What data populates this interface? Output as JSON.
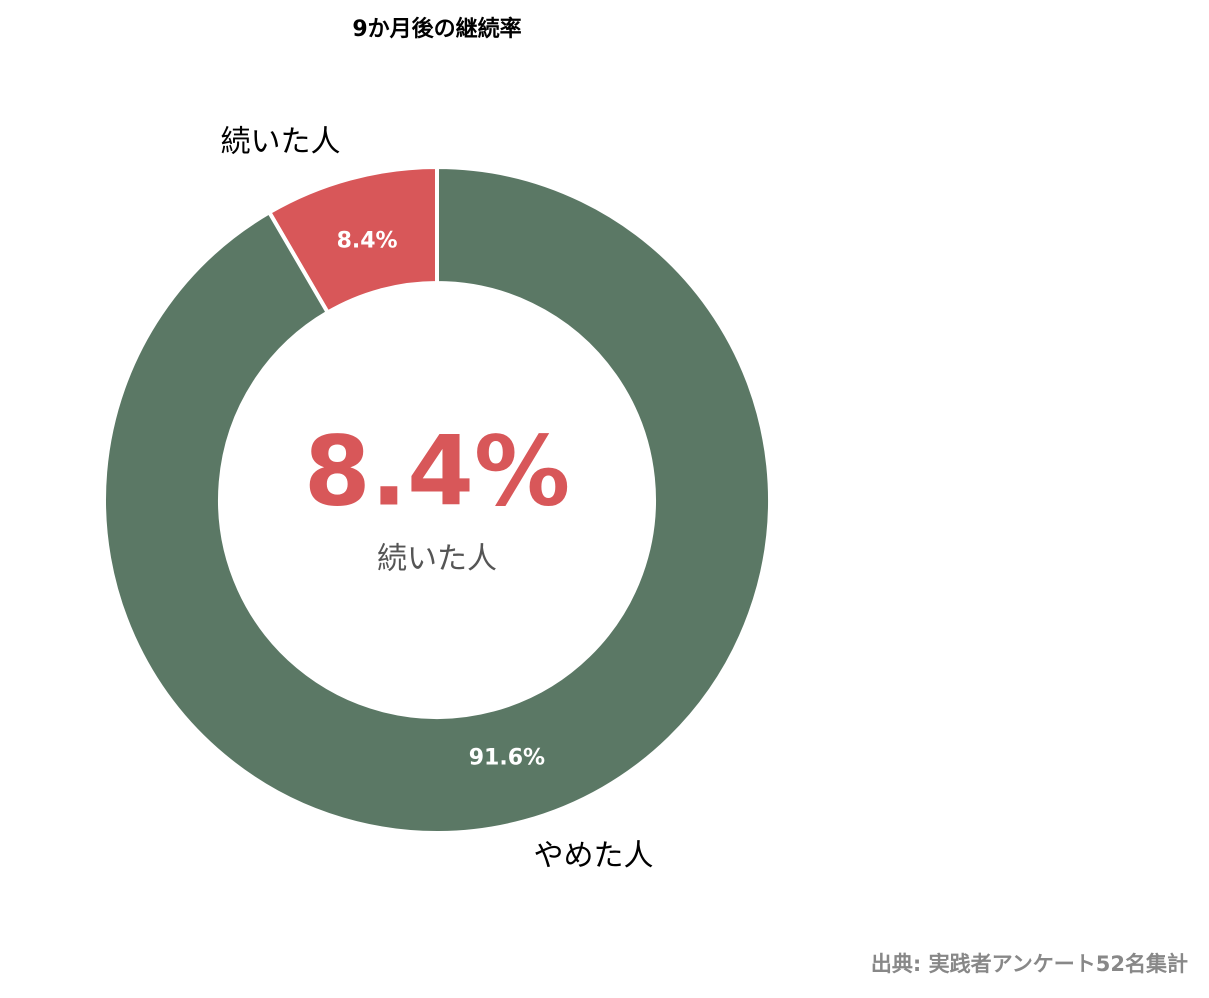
{
  "chart_data": {
    "type": "donut",
    "title": "9か月後の継続率",
    "categories": [
      "続いた人",
      "やめた人"
    ],
    "values": [
      8.4,
      91.6
    ],
    "value_labels": [
      "8.4%",
      "91.6%"
    ],
    "colors": [
      "#d85759",
      "#5b7865"
    ],
    "source": "出典: 実践者アンケート52名集計"
  }
}
